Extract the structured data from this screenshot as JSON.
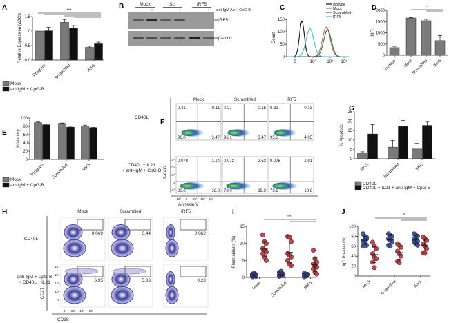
{
  "panel_letters": {
    "a": "A",
    "b": "B",
    "c": "C",
    "d": "D",
    "e": "E",
    "f": "F",
    "g": "G",
    "h": "H",
    "i": "I",
    "j": "J"
  },
  "colors": {
    "gray_bar": "#7a7a7a",
    "black_bar": "#111111",
    "blue_dots": "#2b4fb0",
    "red_dots": "#c0343c",
    "isotype": "#111111",
    "mock": "#d0604a",
    "scrambled": "#1f7a45",
    "irf5": "#3fb8c8"
  },
  "chart_data": [
    {
      "id": "A",
      "type": "bar",
      "ylabel": "Relative Expression (ΔΔCt)",
      "categories": [
        "Program",
        "Scrambled",
        "IRF5"
      ],
      "series": [
        {
          "name": "Mock",
          "values": [
            1.0,
            1.3,
            0.44
          ],
          "errors": [
            0,
            0.1,
            0.04
          ],
          "color": "#7a7a7a"
        },
        {
          "name": "antiIgM + CpG-B",
          "values": [
            1.01,
            1.1,
            0.56
          ],
          "errors": [
            0.12,
            0.09,
            0.06
          ],
          "color": "#111111"
        }
      ],
      "ylim": [
        0,
        1.5
      ],
      "yticks": [
        "0.0",
        "0.5",
        "1.0",
        "1.5"
      ],
      "significance": "***",
      "grid": false,
      "legend": "bottom-left"
    },
    {
      "id": "C",
      "type": "line",
      "ylabel": "Count",
      "xticks": [
        "0",
        "10³",
        "10⁴",
        "10⁵"
      ],
      "yticks": [
        "0",
        "50",
        "100",
        "150"
      ],
      "ylim": [
        0,
        170
      ],
      "series": [
        {
          "name": "Isotype",
          "peak_x": 150,
          "peak_count": 162,
          "color": "#111111"
        },
        {
          "name": "Mock",
          "peak_x": 6000,
          "peak_count": 135,
          "color": "#d0604a"
        },
        {
          "name": "Scrambled",
          "peak_x": 7000,
          "peak_count": 122,
          "color": "#1f7a45"
        },
        {
          "name": "IRF5",
          "peak_x": 700,
          "peak_count": 127,
          "color": "#3fb8c8"
        }
      ],
      "legend": "top-right"
    },
    {
      "id": "D",
      "type": "bar",
      "ylabel": "MFI",
      "categories": [
        "Isotype",
        "Mock",
        "Scrambled",
        "IRF5"
      ],
      "series": [
        {
          "values": [
            340,
            1660,
            1540,
            650
          ],
          "errors": [
            60,
            20,
            60,
            230
          ],
          "color": "#7a7a7a"
        }
      ],
      "ylim": [
        0,
        2000
      ],
      "yticks": [
        "0",
        "500",
        "1000",
        "1500",
        "2000"
      ],
      "significance": "**"
    },
    {
      "id": "E",
      "type": "bar",
      "ylabel": "% Viability",
      "categories": [
        "Program",
        "Scrambled",
        "IRF5"
      ],
      "series": [
        {
          "name": "Mock",
          "values": [
            89,
            87,
            81
          ],
          "errors": [
            1.5,
            1,
            2
          ],
          "color": "#7a7a7a"
        },
        {
          "name": "antiIgM + CpG-B",
          "values": [
            84,
            78,
            77
          ],
          "errors": [
            2,
            0.5,
            0.5
          ],
          "color": "#111111"
        }
      ],
      "ylim": [
        0,
        100
      ],
      "yticks": [
        "0",
        "20",
        "40",
        "60",
        "80",
        "100"
      ],
      "legend": "bottom-left"
    },
    {
      "id": "G",
      "type": "bar",
      "ylabel": "% Apoptotic",
      "categories": [
        "Mock",
        "Scrambled",
        "IRF5"
      ],
      "series": [
        {
          "name": "CD40L",
          "values": [
            3.2,
            6.2,
            5.2
          ],
          "errors": [
            0.5,
            3.6,
            3
          ],
          "color": "#7a7a7a"
        },
        {
          "name": "CD40L + IL21 + anti-IgM + CpG-B",
          "values": [
            13.2,
            17.2,
            17.8
          ],
          "errors": [
            5,
            3.2,
            2
          ],
          "color": "#111111"
        }
      ],
      "ylim": [
        0,
        25
      ],
      "yticks": [
        "0",
        "5",
        "10",
        "15",
        "20",
        "25"
      ],
      "legend": "bottom"
    },
    {
      "id": "I",
      "type": "scatter",
      "ylabel": "Plasmablasts (%)",
      "categories": [
        "Mock",
        "Scrambled",
        "IRF5"
      ],
      "series": [
        {
          "color": "#2b4fb0",
          "values": [
            [
              0.2,
              0.5,
              0.8,
              1.0,
              1.2,
              0.3,
              0.6,
              0.9,
              0.4
            ],
            [
              0.3,
              0.6,
              1.0,
              1.5,
              1.8,
              0.5,
              0.8,
              1.2
            ],
            [
              0.2,
              0.5,
              0.8,
              1.2,
              0.4,
              0.9,
              0.6,
              1.0
            ]
          ]
        },
        {
          "color": "#c0343c",
          "values": [
            [
              12.5,
              10.5,
              10,
              8.5,
              8,
              7.5,
              7,
              6,
              5
            ],
            [
              12,
              11.8,
              10.5,
              7,
              6.5,
              6,
              5,
              4,
              3.5
            ],
            [
              8,
              5.5,
              4.5,
              4,
              3.5,
              3,
              2.5,
              1.5,
              1
            ]
          ]
        }
      ],
      "ylim": [
        0,
        15
      ],
      "yticks": [
        "0",
        "5",
        "10",
        "15"
      ],
      "significance": "***"
    },
    {
      "id": "J",
      "type": "scatter",
      "ylabel": "IgD Positive (%)",
      "categories": [
        "Mock",
        "Scrambled",
        "IRF5"
      ],
      "series": [
        {
          "color": "#2b4fb0",
          "values": [
            [
              85,
              80,
              75,
              70,
              65,
              62,
              60,
              72,
              78
            ],
            [
              85,
              82,
              80,
              75,
              72,
              68,
              62,
              60
            ],
            [
              85,
              82,
              80,
              75,
              72,
              70,
              68,
              65,
              62
            ]
          ]
        },
        {
          "color": "#c0343c",
          "values": [
            [
              68,
              60,
              55,
              45,
              38,
              35,
              28,
              17
            ],
            [
              65,
              62,
              58,
              50,
              45,
              40,
              30,
              27
            ],
            [
              78,
              75,
              72,
              65,
              60,
              55,
              47,
              46
            ]
          ]
        }
      ],
      "ylim": [
        0,
        100
      ],
      "yticks": [
        "0",
        "20",
        "40",
        "60",
        "80",
        "100"
      ],
      "significance": "*"
    }
  ],
  "panel_b": {
    "groups": [
      "Mock",
      "Scr",
      "IRF5"
    ],
    "signs": [
      "–",
      "+",
      "–",
      "+",
      "–",
      "+"
    ],
    "treatment": "anti-IgM Ab + CpG-B",
    "bands": [
      {
        "label": "IRF5",
        "intensity": [
          0.5,
          0.9,
          0.5,
          0.6,
          0,
          0
        ]
      },
      {
        "label": "β-actin",
        "intensity": [
          0.6,
          0.6,
          0.55,
          0.6,
          0.95,
          0.5
        ]
      }
    ]
  },
  "panel_f": {
    "columns": [
      "Mock",
      "Scrambled",
      "IRF5"
    ],
    "rows": [
      {
        "label": [
          "CD40L"
        ],
        "quadrants": [
          [
            "0.41",
            "0.11",
            "96.0",
            "3.47"
          ],
          [
            "0.27",
            "0.15",
            "96.1",
            "3.47"
          ],
          [
            "0.32",
            "0.13",
            "95.5",
            "4.05"
          ]
        ]
      },
      {
        "label": [
          "CD40L + IL21",
          "+ anti-IgM + CpG-B"
        ],
        "quadrants": [
          [
            "0.078",
            "1.14",
            "80.0",
            "18.8"
          ],
          [
            "0.073",
            "2.63",
            "78.0",
            "19.3"
          ],
          [
            "0.076",
            "1.91",
            "79.2",
            "18.8"
          ]
        ]
      }
    ],
    "yaxis": "7-AAD",
    "xaxis": "Annexin V",
    "yticks": [
      "10⁵",
      "10⁴",
      "10³",
      "0",
      "-10³"
    ],
    "xticks": [
      "-10³",
      "0",
      "10³",
      "10⁴",
      "10⁵"
    ]
  },
  "panel_h": {
    "columns": [
      "Mock",
      "Scrambled",
      "IRF5"
    ],
    "rows": [
      {
        "label": [
          "CD40L"
        ],
        "gates": [
          "0.069",
          "0.44",
          "0.062"
        ]
      },
      {
        "label": [
          "anti-IgM + CpG-B",
          "+ CD40L + IL21"
        ],
        "gates": [
          "6.95",
          "5.83",
          "0.28"
        ]
      }
    ],
    "yaxis": "CD27",
    "xaxis": "CD38",
    "yticks": [
      "10⁵",
      "10⁴",
      "10³",
      "10²",
      "0"
    ],
    "xticks": [
      "0",
      "10³",
      "10⁴",
      "10⁵"
    ]
  }
}
